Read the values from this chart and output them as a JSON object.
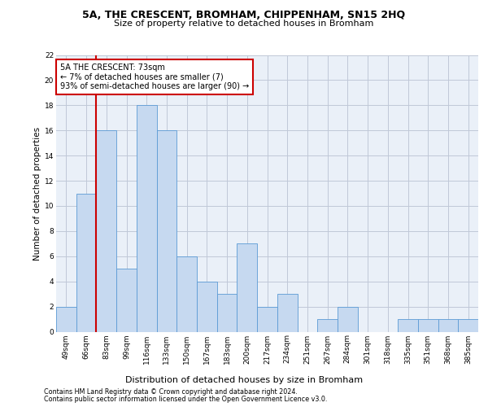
{
  "title1": "5A, THE CRESCENT, BROMHAM, CHIPPENHAM, SN15 2HQ",
  "title2": "Size of property relative to detached houses in Bromham",
  "xlabel": "Distribution of detached houses by size in Bromham",
  "ylabel": "Number of detached properties",
  "categories": [
    "49sqm",
    "66sqm",
    "83sqm",
    "99sqm",
    "116sqm",
    "133sqm",
    "150sqm",
    "167sqm",
    "183sqm",
    "200sqm",
    "217sqm",
    "234sqm",
    "251sqm",
    "267sqm",
    "284sqm",
    "301sqm",
    "318sqm",
    "335sqm",
    "351sqm",
    "368sqm",
    "385sqm"
  ],
  "values": [
    2,
    11,
    16,
    5,
    18,
    16,
    6,
    4,
    3,
    7,
    2,
    3,
    0,
    1,
    2,
    0,
    0,
    1,
    1,
    1,
    1
  ],
  "bar_color": "#c6d9f0",
  "bar_edge_color": "#5b9bd5",
  "grid_color": "#c0c8d8",
  "bg_color": "#eaf0f8",
  "annotation_line1": "5A THE CRESCENT: 73sqm",
  "annotation_line2": "← 7% of detached houses are smaller (7)",
  "annotation_line3": "93% of semi-detached houses are larger (90) →",
  "annotation_box_color": "#cc0000",
  "vline_color": "#cc0000",
  "ylim": [
    0,
    22
  ],
  "yticks": [
    0,
    2,
    4,
    6,
    8,
    10,
    12,
    14,
    16,
    18,
    20,
    22
  ],
  "footer1": "Contains HM Land Registry data © Crown copyright and database right 2024.",
  "footer2": "Contains public sector information licensed under the Open Government Licence v3.0.",
  "title1_fontsize": 9,
  "title2_fontsize": 8,
  "ylabel_fontsize": 7.5,
  "xlabel_fontsize": 8,
  "tick_fontsize": 6.5,
  "ann_fontsize": 7,
  "footer_fontsize": 5.8
}
